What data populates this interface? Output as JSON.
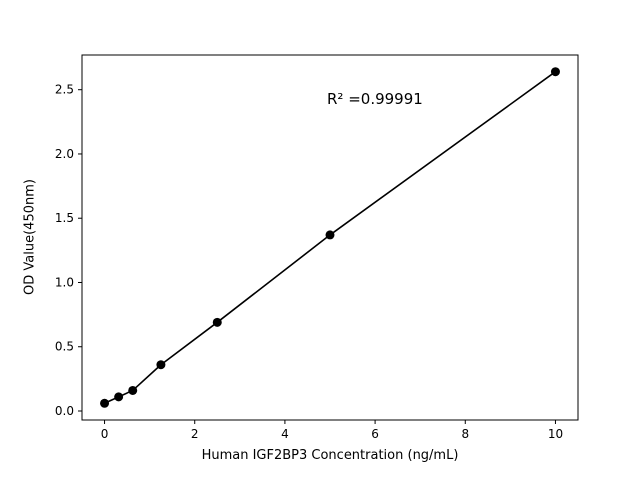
{
  "figure": {
    "background": "#ffffff"
  },
  "chart_data": {
    "type": "scatter",
    "line": true,
    "x": [
      0,
      0.3125,
      0.625,
      1.25,
      2.5,
      5,
      10
    ],
    "y": [
      0.06,
      0.11,
      0.16,
      0.36,
      0.69,
      1.37,
      2.64
    ],
    "xlabel": "Human IGF2BP3 Concentration (ng/mL)",
    "ylabel": "OD Value(450nm)",
    "annotation": "R² =0.99991",
    "xlim": [
      -0.5,
      10.5
    ],
    "ylim": [
      -0.07,
      2.77
    ],
    "xticks": [
      0,
      2,
      4,
      6,
      8,
      10
    ],
    "xtick_labels": [
      "0",
      "2",
      "4",
      "6",
      "8",
      "10"
    ],
    "yticks": [
      0,
      0.5,
      1.0,
      1.5,
      2.0,
      2.5
    ],
    "ytick_labels": [
      "0.0",
      "0.5",
      "1.0",
      "1.5",
      "2.0",
      "2.5"
    ],
    "grid": false,
    "line_color": "#000000",
    "marker_color": "#000000",
    "axis_color": "#000000"
  }
}
